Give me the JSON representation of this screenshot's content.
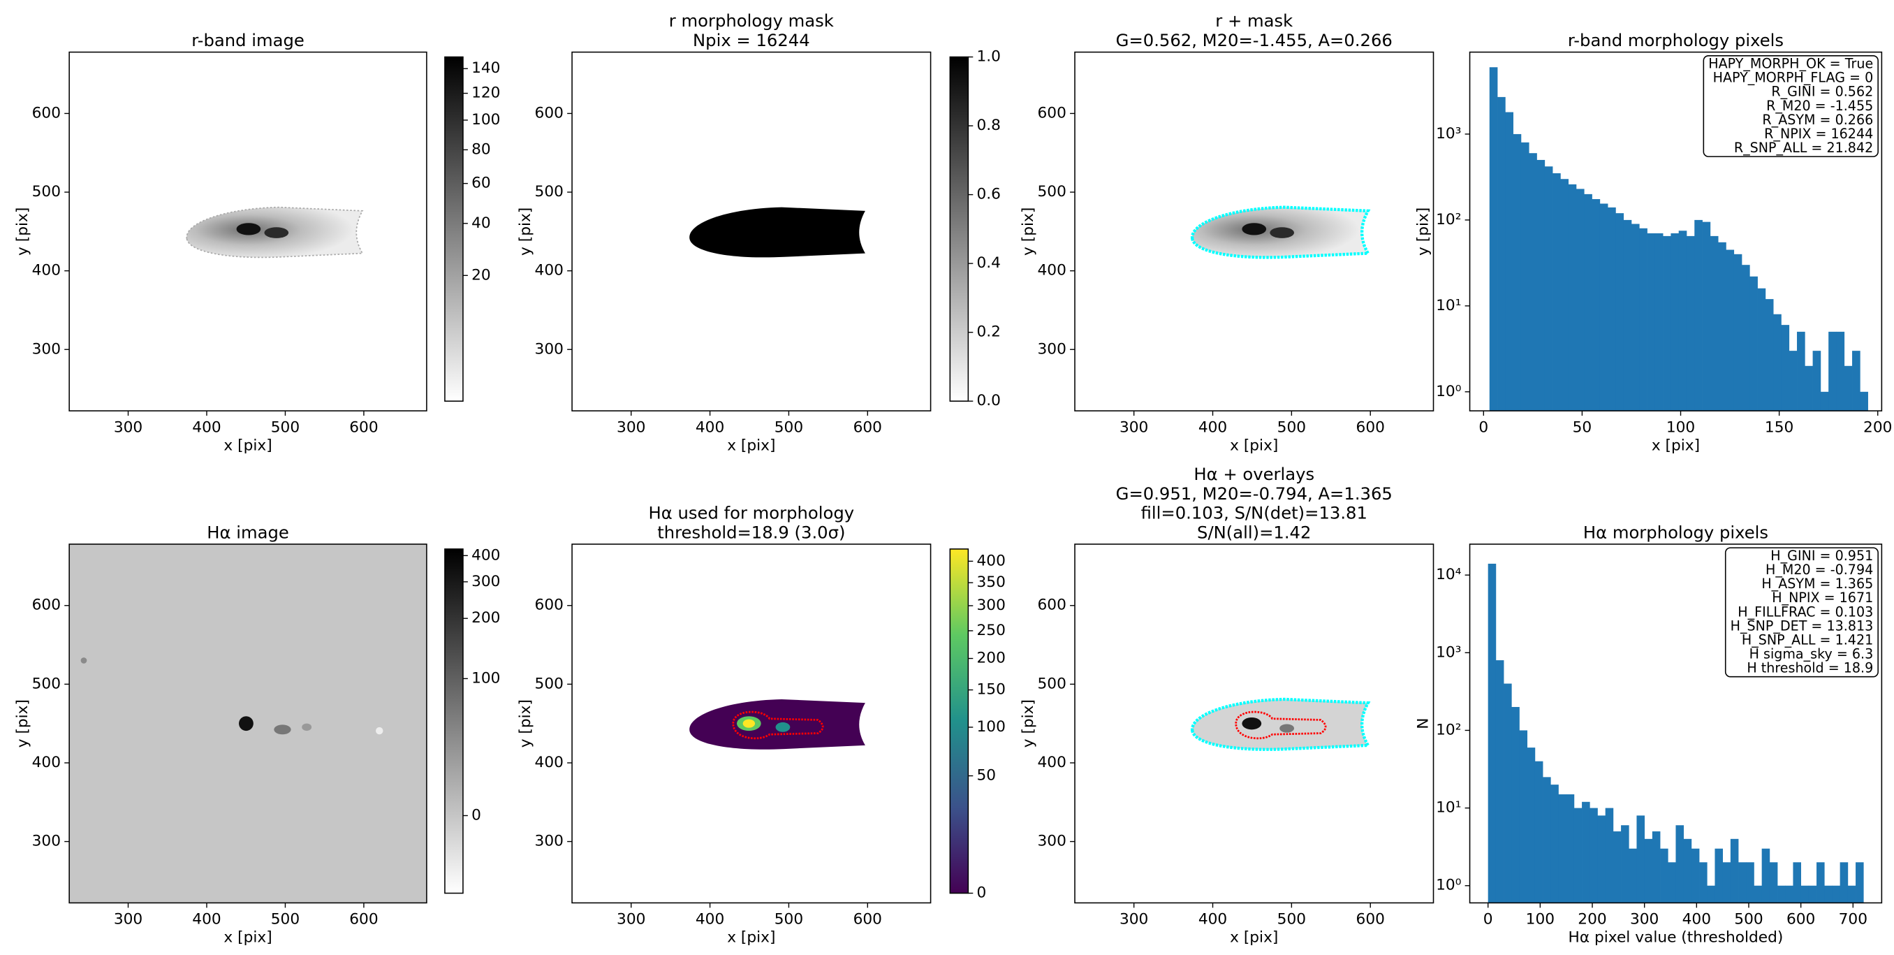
{
  "chart_data": [
    {
      "type": "image",
      "title": [
        "r-band image"
      ],
      "xlabel": "x [pix]",
      "ylabel": "y [pix]",
      "xlim": [
        225,
        680
      ],
      "ylim": [
        222,
        678
      ],
      "xticks": [
        300,
        400,
        500,
        600
      ],
      "yticks": [
        300,
        400,
        500,
        600
      ],
      "colorbar": {
        "lim": [
          0,
          150
        ],
        "ticks": [
          20,
          40,
          60,
          80,
          100,
          120,
          140
        ],
        "scale": "sqrt",
        "colormap": "gray_r"
      }
    },
    {
      "type": "image",
      "title": [
        "r morphology mask",
        "Npix = 16244"
      ],
      "xlabel": "x [pix]",
      "ylabel": "y [pix]",
      "xlim": [
        225,
        680
      ],
      "ylim": [
        222,
        678
      ],
      "xticks": [
        300,
        400,
        500,
        600
      ],
      "yticks": [
        300,
        400,
        500,
        600
      ],
      "colorbar": {
        "lim": [
          0,
          1
        ],
        "ticks": [
          {
            "value": 0,
            "label": "0.0"
          },
          0.2,
          0.4,
          0.6,
          0.8,
          {
            "value": 1,
            "label": "1.0"
          }
        ],
        "scale": "linear",
        "colormap": "gray_r"
      }
    },
    {
      "type": "image",
      "title": [
        "r + mask",
        "G=0.562, M20=-1.455, A=0.266"
      ],
      "xlabel": "x [pix]",
      "ylabel": "y [pix]",
      "xlim": [
        225,
        680
      ],
      "ylim": [
        222,
        678
      ],
      "xticks": [
        300,
        400,
        500,
        600
      ],
      "yticks": [
        300,
        400,
        500,
        600
      ]
    },
    {
      "type": "histogram",
      "title": [
        "r-band morphology pixels"
      ],
      "xlabel": "x [pix]",
      "ylabel": "y [pix]",
      "color": "#1f77b4",
      "ylog": true,
      "xlim": [
        -7,
        202
      ],
      "ylim": [
        0.6,
        9000
      ],
      "xticks": [
        0,
        50,
        100,
        150,
        200
      ],
      "yticks": [
        {
          "value": 1,
          "label": "10⁰"
        },
        {
          "value": 10,
          "label": "10¹"
        },
        {
          "value": 100,
          "label": "10²"
        },
        {
          "value": 1000,
          "label": "10³"
        }
      ],
      "bins": [
        3,
        7,
        11,
        15,
        19,
        23,
        27,
        31,
        35,
        39,
        43,
        47,
        51,
        55,
        59,
        63,
        67,
        71,
        75,
        79,
        83,
        87,
        91,
        95,
        99,
        103,
        107,
        111,
        115,
        119,
        123,
        127,
        131,
        135,
        139,
        143,
        147,
        151,
        155,
        159,
        163,
        167,
        171,
        175,
        179,
        183,
        187,
        191,
        195
      ],
      "values": [
        6000,
        2700,
        1800,
        1000,
        800,
        600,
        500,
        420,
        350,
        300,
        260,
        230,
        200,
        175,
        155,
        140,
        120,
        100,
        90,
        80,
        70,
        70,
        65,
        70,
        75,
        65,
        100,
        95,
        65,
        55,
        45,
        40,
        30,
        22,
        16,
        12,
        8,
        6,
        3,
        5,
        2,
        3,
        1,
        5,
        5,
        2,
        3,
        1
      ],
      "annotation": [
        "HAPY_MORPH_OK = True",
        "HAPY_MORPH_FLAG = 0",
        "R_GINI = 0.562",
        "R_M20 = -1.455",
        "R_ASYM = 0.266",
        "R_NPIX = 16244",
        "R_SNP_ALL = 21.842"
      ]
    },
    {
      "type": "image",
      "title": [
        "Hα image"
      ],
      "xlabel": "x [pix]",
      "ylabel": "y [pix]",
      "xlim": [
        225,
        680
      ],
      "ylim": [
        222,
        678
      ],
      "xticks": [
        300,
        400,
        500,
        600
      ],
      "yticks": [
        300,
        400,
        500,
        600
      ],
      "colorbar": {
        "lim": [
          -45,
          430
        ],
        "ticks": [
          0,
          100,
          200,
          300,
          400
        ],
        "scale": "asinh",
        "colormap": "gray_r"
      }
    },
    {
      "type": "image",
      "title": [
        "Hα used for morphology",
        "threshold=18.9 (3.0σ)"
      ],
      "xlabel": "x [pix]",
      "ylabel": "y [pix]",
      "xlim": [
        225,
        680
      ],
      "ylim": [
        222,
        678
      ],
      "xticks": [
        300,
        400,
        500,
        600
      ],
      "yticks": [
        300,
        400,
        500,
        600
      ],
      "colorbar": {
        "lim": [
          0,
          430
        ],
        "ticks": [
          0,
          50,
          100,
          150,
          200,
          250,
          300,
          350,
          400
        ],
        "scale": "sqrt",
        "colormap": "viridis"
      }
    },
    {
      "type": "image",
      "title": [
        "Hα + overlays",
        "G=0.951, M20=-0.794, A=1.365",
        "fill=0.103, S/N(det)=13.81",
        "S/N(all)=1.42"
      ],
      "xlabel": "x [pix]",
      "ylabel": "y [pix]",
      "xlim": [
        225,
        680
      ],
      "ylim": [
        222,
        678
      ],
      "xticks": [
        300,
        400,
        500,
        600
      ],
      "yticks": [
        300,
        400,
        500,
        600
      ]
    },
    {
      "type": "histogram",
      "title": [
        "Hα morphology pixels"
      ],
      "xlabel": "Hα pixel value (thresholded)",
      "ylabel": "N",
      "color": "#1f77b4",
      "ylog": true,
      "xlim": [
        -35,
        755
      ],
      "ylim": [
        0.6,
        25000
      ],
      "xticks": [
        0,
        100,
        200,
        300,
        400,
        500,
        600,
        700
      ],
      "yticks": [
        {
          "value": 1,
          "label": "10⁰"
        },
        {
          "value": 10,
          "label": "10¹"
        },
        {
          "value": 100,
          "label": "10²"
        },
        {
          "value": 1000,
          "label": "10³"
        },
        {
          "value": 10000,
          "label": "10⁴"
        }
      ],
      "bins": [
        0,
        15,
        30,
        45,
        60,
        75,
        90,
        105,
        120,
        135,
        150,
        165,
        180,
        195,
        210,
        225,
        240,
        255,
        270,
        285,
        300,
        315,
        330,
        345,
        360,
        375,
        390,
        405,
        420,
        435,
        450,
        465,
        480,
        495,
        510,
        525,
        540,
        555,
        570,
        585,
        600,
        615,
        630,
        645,
        660,
        675,
        690,
        705,
        720
      ],
      "values": [
        14000,
        800,
        400,
        200,
        100,
        60,
        40,
        25,
        20,
        15,
        15,
        10,
        12,
        10,
        8,
        10,
        5,
        6,
        3,
        8,
        4,
        5,
        3,
        2,
        6,
        4,
        3,
        2,
        1,
        3,
        2,
        4,
        2,
        2,
        1,
        3,
        2,
        1,
        1,
        2,
        1,
        1,
        2,
        1,
        1,
        2,
        1,
        2
      ],
      "annotation": [
        "H_GINI = 0.951",
        "H_M20 = -0.794",
        "H_ASYM = 1.365",
        "H_NPIX = 1671",
        "H_FILLFRAC = 0.103",
        "H_SNP_DET = 13.813",
        "H_SNP_ALL = 1.421",
        "H sigma_sky = 6.3",
        "H threshold = 18.9"
      ]
    }
  ]
}
